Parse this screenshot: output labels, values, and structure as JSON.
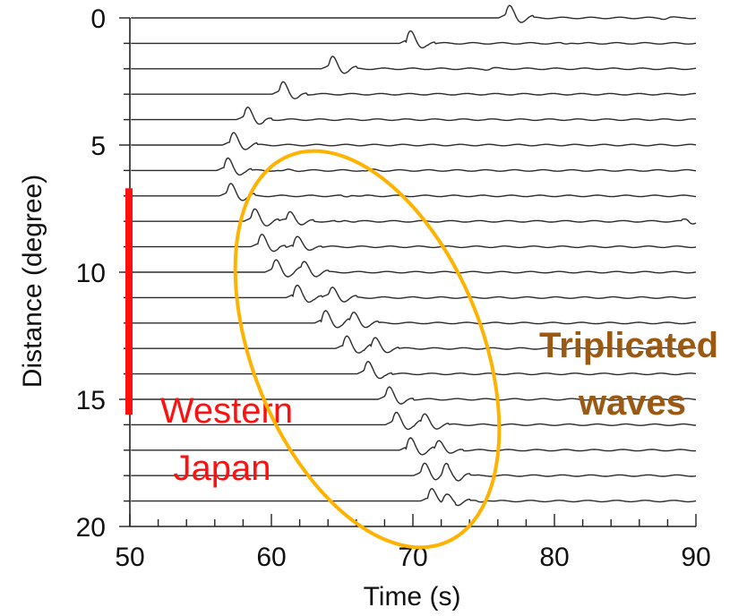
{
  "chart_data": {
    "type": "line",
    "xlabel": "Time (s)",
    "ylabel": "Distance (degree)",
    "xlim": [
      50,
      90
    ],
    "ylim": [
      0,
      20
    ],
    "x_ticks": [
      50,
      60,
      70,
      80,
      90
    ],
    "y_ticks": [
      0,
      5,
      10,
      15,
      20
    ],
    "x_minor_step": 2,
    "y_minor_step": 1,
    "grid": false,
    "traces": [
      {
        "distance": 0.0,
        "onset": 76.5,
        "late": [
          [
            88.0,
            -1.5
          ]
        ]
      },
      {
        "distance": 1.0,
        "onset": 69.5,
        "late": [
          [
            81.0,
            -1.5
          ]
        ]
      },
      {
        "distance": 2.0,
        "onset": 64.0,
        "late": [
          [
            75.5,
            -1.5
          ]
        ]
      },
      {
        "distance": 3.0,
        "onset": 60.5,
        "late": []
      },
      {
        "distance": 4.0,
        "onset": 58.0,
        "late": []
      },
      {
        "distance": 5.0,
        "onset": 57.0,
        "late": []
      },
      {
        "distance": 6.0,
        "onset": 56.6,
        "late": [
          [
            61.0,
            -1.5
          ],
          [
            67.0,
            -1.5
          ]
        ]
      },
      {
        "distance": 7.0,
        "onset": 56.8,
        "late": [
          [
            65.5,
            -2
          ]
        ]
      },
      {
        "distance": 8.0,
        "onset": 58.5,
        "second": 61.0,
        "late": [
          [
            65.0,
            -2
          ],
          [
            89.5,
            4
          ]
        ]
      },
      {
        "distance": 9.0,
        "onset": 59.0,
        "second": 61.5,
        "late": []
      },
      {
        "distance": 10.0,
        "onset": 60.0,
        "second": 62.0,
        "late": []
      },
      {
        "distance": 11.0,
        "onset": 61.5,
        "second": 64.0,
        "late": []
      },
      {
        "distance": 12.0,
        "onset": 63.5,
        "second": 65.5,
        "late": []
      },
      {
        "distance": 13.0,
        "onset": 65.0,
        "second": 67.0,
        "late": []
      },
      {
        "distance": 14.0,
        "onset": 66.5,
        "late": []
      },
      {
        "distance": 15.0,
        "onset": 68.0,
        "late": []
      },
      {
        "distance": 16.0,
        "onset": 68.5,
        "second": 70.5,
        "late": []
      },
      {
        "distance": 17.0,
        "onset": 69.5,
        "second": 71.5,
        "late": []
      },
      {
        "distance": 18.0,
        "onset": 70.5,
        "second": 72.0,
        "late": [
          [
            73.5,
            -2
          ]
        ]
      },
      {
        "distance": 19.0,
        "onset": 71.0,
        "second": 72.0,
        "late": [
          [
            75.0,
            -2
          ]
        ]
      }
    ],
    "annotations": [
      {
        "kind": "bar",
        "text_lines": [
          "Western",
          "Japan"
        ],
        "distance_range": [
          6.7,
          15.6
        ],
        "x": 50,
        "color": "#ff1010"
      },
      {
        "kind": "ellipse",
        "text_lines": [
          "Triplicated",
          "waves"
        ],
        "color": "#ffb300",
        "text_color": "#9a5a14",
        "center": [
          65.6,
          13.4
        ],
        "angle_deg": -22
      }
    ]
  }
}
